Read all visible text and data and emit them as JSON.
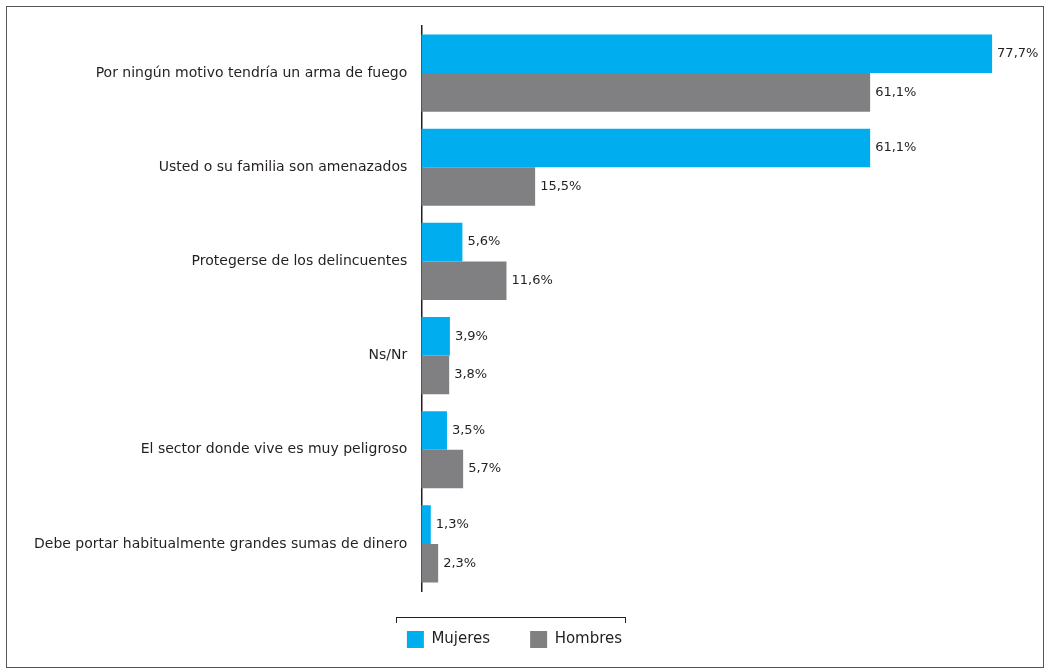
{
  "chart_data": {
    "type": "bar",
    "orientation": "horizontal",
    "categories": [
      "Por ningún motivo tendría un arma de fuego",
      "Usted o su familia son amenazados",
      "Protegerse de los delincuentes",
      "Ns/Nr",
      "El sector donde vive es muy peligroso",
      "Debe portar habitualmente grandes sumas de dinero"
    ],
    "series": [
      {
        "name": "Mujeres",
        "color": "#00aeef",
        "values": [
          77.7,
          61.1,
          5.6,
          3.9,
          3.5,
          1.3
        ],
        "value_labels": [
          "77,7%",
          "61,1%",
          "5,6%",
          "3,9%",
          "3,5%",
          "1,3%"
        ]
      },
      {
        "name": "Hombres",
        "color": "#808083",
        "values": [
          61.1,
          15.5,
          11.6,
          3.8,
          5.7,
          2.3
        ],
        "value_labels": [
          "61,1%",
          "15,5%",
          "11,6%",
          "3,8%",
          "5,7%",
          "2,3%"
        ]
      }
    ],
    "legend": "bottom",
    "grid": false
  }
}
